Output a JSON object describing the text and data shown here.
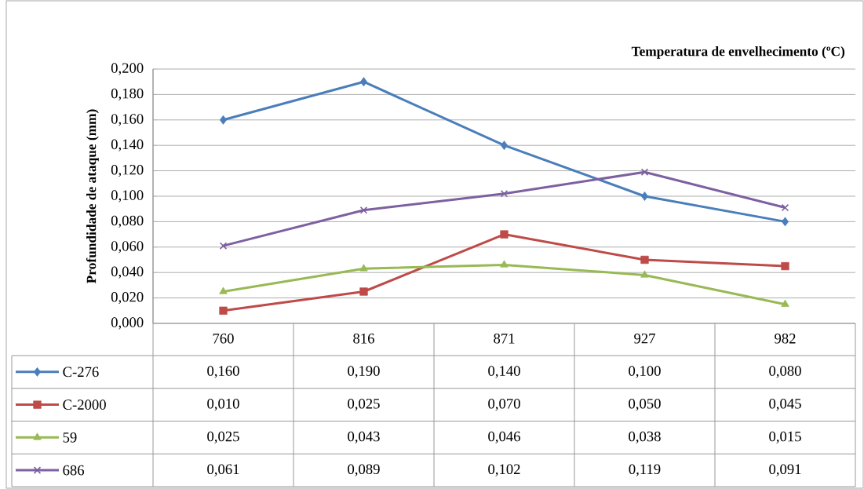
{
  "chart_data": {
    "type": "line",
    "xlabel": "Temperatura de envelhecimento (ºC)",
    "ylabel": "Profundidade de ataque (mm)",
    "categories": [
      "760",
      "816",
      "871",
      "927",
      "982"
    ],
    "ylim": [
      0,
      0.2
    ],
    "yticks": [
      {
        "value": 0,
        "label": "0,000"
      },
      {
        "value": 0.02,
        "label": "0,020"
      },
      {
        "value": 0.04,
        "label": "0,040"
      },
      {
        "value": 0.06,
        "label": "0,060"
      },
      {
        "value": 0.08,
        "label": "0,080"
      },
      {
        "value": 0.1,
        "label": "0,100"
      },
      {
        "value": 0.12,
        "label": "0,120"
      },
      {
        "value": 0.14,
        "label": "0,140"
      },
      {
        "value": 0.16,
        "label": "0,160"
      },
      {
        "value": 0.18,
        "label": "0,180"
      },
      {
        "value": 0.2,
        "label": "0,200"
      }
    ],
    "grid": "y",
    "legend": "bottom left",
    "series": [
      {
        "name": "C-276",
        "color": "#4a7ebb",
        "marker": "diamond",
        "values": [
          0.16,
          0.19,
          0.14,
          0.1,
          0.08
        ],
        "value_labels": [
          "0,160",
          "0,190",
          "0,140",
          "0,100",
          "0,080"
        ]
      },
      {
        "name": "C-2000",
        "color": "#be4b48",
        "marker": "square",
        "values": [
          0.01,
          0.025,
          0.07,
          0.05,
          0.045
        ],
        "value_labels": [
          "0,010",
          "0,025",
          "0,070",
          "0,050",
          "0,045"
        ]
      },
      {
        "name": "59",
        "color": "#98b954",
        "marker": "triangle",
        "values": [
          0.025,
          0.043,
          0.046,
          0.038,
          0.015
        ],
        "value_labels": [
          "0,025",
          "0,043",
          "0,046",
          "0,038",
          "0,015"
        ]
      },
      {
        "name": "686",
        "color": "#7d60a0",
        "marker": "cross",
        "values": [
          0.061,
          0.089,
          0.102,
          0.119,
          0.091
        ],
        "value_labels": [
          "0,061",
          "0,089",
          "0,102",
          "0,119",
          "0,091"
        ]
      }
    ]
  }
}
